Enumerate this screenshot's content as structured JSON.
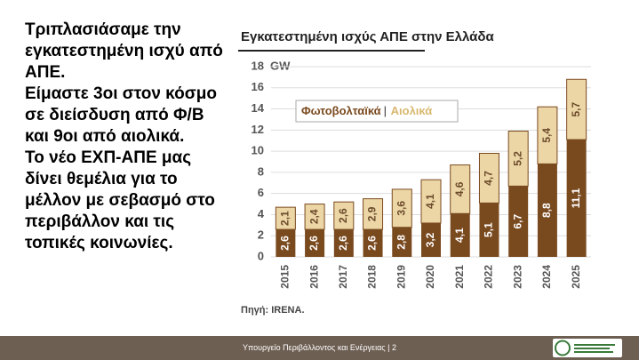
{
  "slide": {
    "paragraphs": [
      "Τριπλασιάσαμε την εγκατεστημένη ισχύ από ΑΠΕ.",
      "Είμαστε 3οι στον κόσμο σε διείσδυση από Φ/Β και 9οι από αιολικά.",
      "Το νέο ΕΧΠ-ΑΠΕ μας δίνει θεμέλια για το μέλλον με σεβασμό στο περιβάλλον και τις τοπικές κοινωνίες."
    ],
    "footer": "Υπουργείο Περιβάλλοντος και Ενέργειας | 2"
  },
  "chart_data": {
    "type": "stacked_bar",
    "title": "Εγκατεστημένη ισχύς ΑΠΕ στην Ελλάδα",
    "y_unit": "GW",
    "source": "Πηγή: IRENA.",
    "categories": [
      "2015",
      "2016",
      "2017",
      "2018",
      "2019",
      "2020",
      "2021",
      "2022",
      "2023",
      "2024",
      "2025"
    ],
    "series": [
      {
        "name": "Φωτοβολταϊκά",
        "color": "#7a4a1f",
        "values": [
          2.6,
          2.6,
          2.6,
          2.6,
          2.8,
          3.2,
          4.1,
          5.1,
          6.7,
          8.8,
          11.1
        ],
        "value_labels": [
          "2,6",
          "2,6",
          "2,6",
          "2,6",
          "2,8",
          "3,2",
          "4,1",
          "5,1",
          "6,7",
          "8,8",
          "11,1"
        ]
      },
      {
        "name": "Αιολικά",
        "color": "#ecd6a6",
        "values": [
          2.1,
          2.4,
          2.6,
          2.9,
          3.6,
          4.1,
          4.6,
          4.7,
          5.2,
          5.4,
          5.7
        ],
        "value_labels": [
          "2,1",
          "2,4",
          "2,6",
          "2,9",
          "3,6",
          "4,1",
          "4,6",
          "4,7",
          "5,2",
          "5,4",
          "5,7"
        ]
      }
    ],
    "ylim": [
      0,
      18
    ],
    "yticks": [
      0,
      2,
      4,
      6,
      8,
      10,
      12,
      14,
      16,
      18
    ],
    "grid": true
  }
}
